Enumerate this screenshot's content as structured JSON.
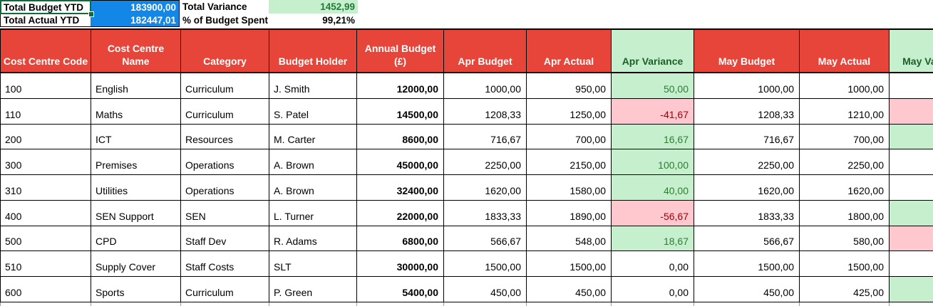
{
  "summary": {
    "row1": {
      "label_a": "Total Budget YTD",
      "value_a": "183900,00",
      "label_b": "Total Variance",
      "value_b": "1452,99"
    },
    "row2": {
      "label_a": "Total Actual YTD",
      "value_a": "182447,01",
      "label_b": "% of Budget Spent",
      "value_b": "99,21%"
    }
  },
  "table": {
    "headers": [
      "Cost Centre Code",
      "Cost Centre Name",
      "Category",
      "Budget Holder",
      "Annual Budget (£)",
      "Apr Budget",
      "Apr Actual",
      "Apr Variance",
      "May Budget",
      "May Actual",
      "May Variance"
    ],
    "rows": [
      {
        "code": "100",
        "name": "English",
        "category": "Curriculum",
        "holder": "J. Smith",
        "annual": "12000,00",
        "apr_budget": "1000,00",
        "apr_actual": "950,00",
        "apr_variance": "50,00",
        "apr_variance_state": "positive",
        "may_budget": "1000,00",
        "may_actual": "1000,00",
        "may_variance": "",
        "may_variance_state": "none"
      },
      {
        "code": "110",
        "name": "Maths",
        "category": "Curriculum",
        "holder": "S. Patel",
        "annual": "14500,00",
        "apr_budget": "1208,33",
        "apr_actual": "1250,00",
        "apr_variance": "-41,67",
        "apr_variance_state": "negative",
        "may_budget": "1208,33",
        "may_actual": "1210,00",
        "may_variance": "",
        "may_variance_state": "negative"
      },
      {
        "code": "200",
        "name": "ICT",
        "category": "Resources",
        "holder": "M. Carter",
        "annual": "8600,00",
        "apr_budget": "716,67",
        "apr_actual": "700,00",
        "apr_variance": "16,67",
        "apr_variance_state": "positive",
        "may_budget": "716,67",
        "may_actual": "700,00",
        "may_variance": "",
        "may_variance_state": "positive"
      },
      {
        "code": "300",
        "name": "Premises",
        "category": "Operations",
        "holder": "A. Brown",
        "annual": "45000,00",
        "apr_budget": "2250,00",
        "apr_actual": "2150,00",
        "apr_variance": "100,00",
        "apr_variance_state": "positive",
        "may_budget": "2250,00",
        "may_actual": "2250,00",
        "may_variance": "",
        "may_variance_state": "none"
      },
      {
        "code": "310",
        "name": "Utilities",
        "category": "Operations",
        "holder": "A. Brown",
        "annual": "32400,00",
        "apr_budget": "1620,00",
        "apr_actual": "1580,00",
        "apr_variance": "40,00",
        "apr_variance_state": "positive",
        "may_budget": "1620,00",
        "may_actual": "1620,00",
        "may_variance": "",
        "may_variance_state": "none"
      },
      {
        "code": "400",
        "name": "SEN Support",
        "category": "SEN",
        "holder": "L. Turner",
        "annual": "22000,00",
        "apr_budget": "1833,33",
        "apr_actual": "1890,00",
        "apr_variance": "-56,67",
        "apr_variance_state": "negative",
        "may_budget": "1833,33",
        "may_actual": "1800,00",
        "may_variance": "",
        "may_variance_state": "positive"
      },
      {
        "code": "500",
        "name": "CPD",
        "category": "Staff Dev",
        "holder": "R. Adams",
        "annual": "6800,00",
        "apr_budget": "566,67",
        "apr_actual": "548,00",
        "apr_variance": "18,67",
        "apr_variance_state": "positive",
        "may_budget": "566,67",
        "may_actual": "580,00",
        "may_variance": "",
        "may_variance_state": "negative"
      },
      {
        "code": "510",
        "name": "Supply Cover",
        "category": "Staff Costs",
        "holder": "SLT",
        "annual": "30000,00",
        "apr_budget": "1500,00",
        "apr_actual": "1500,00",
        "apr_variance": "0,00",
        "apr_variance_state": "zero",
        "may_budget": "1500,00",
        "may_actual": "1500,00",
        "may_variance": "",
        "may_variance_state": "none"
      },
      {
        "code": "600",
        "name": "Sports",
        "category": "Curriculum",
        "holder": "P. Green",
        "annual": "5400,00",
        "apr_budget": "450,00",
        "apr_actual": "450,00",
        "apr_variance": "0,00",
        "apr_variance_state": "zero",
        "may_budget": "450,00",
        "may_actual": "425,00",
        "may_variance": "",
        "may_variance_state": "positive"
      }
    ]
  },
  "colors": {
    "header_red": "#e8453a",
    "header_text": "#ffffff",
    "variance_header_bg": "#c6efce",
    "variance_header_text": "#1c5f27",
    "positive_bg": "#c6efce",
    "positive_text": "#2e7d32",
    "negative_bg": "#ffc7ce",
    "negative_text": "#9c0006",
    "ytd_blue": "#1287e8",
    "summary_green_text": "#217a36",
    "selection_green": "#0e6b3c"
  }
}
